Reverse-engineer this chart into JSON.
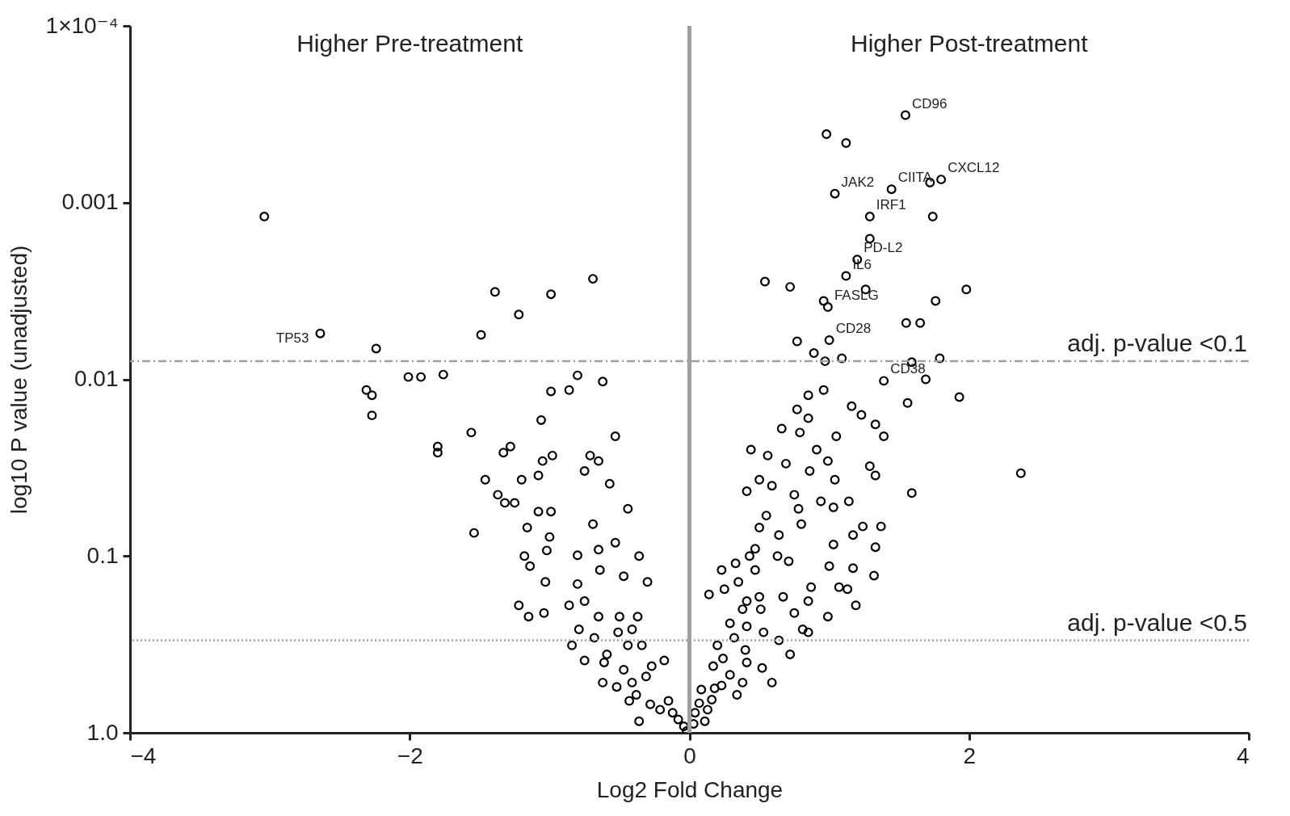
{
  "chart_data": {
    "type": "scatter",
    "xlabel": "Log2 Fold Change",
    "ylabel": "log10 P value (unadjusted)",
    "xlim": [
      -4,
      4
    ],
    "xticks": [
      -4,
      -2,
      0,
      2,
      4
    ],
    "ylim": [
      1,
      0.0001
    ],
    "yticks": [
      {
        "value": 1,
        "label": "1.0"
      },
      0.1,
      0.01,
      0.001,
      {
        "value": 0.0001,
        "label": "1×10⁻⁴"
      }
    ],
    "log": "y",
    "grid": false,
    "marker": "circle",
    "series": [
      {
        "color": "#000000",
        "x": [
          -3.04,
          -2.64,
          -2.24,
          -2.31,
          -2.27,
          -2.27,
          -2.01,
          -1.92,
          -1.76,
          -1.8,
          -1.8,
          -1.39,
          -1.49,
          -1.22,
          -0.99,
          -0.69,
          -0.8,
          -0.62,
          -0.86,
          -0.99,
          -1.06,
          -1.56,
          -1.28,
          -1.33,
          -0.53,
          -0.98,
          -0.71,
          -1.05,
          -0.65,
          -1.46,
          -1.2,
          -1.08,
          -0.75,
          -0.57,
          -1.37,
          -1.25,
          -1.32,
          -0.44,
          -1.54,
          -1.08,
          -0.99,
          -1.16,
          -1.0,
          -0.69,
          -1.18,
          -1.02,
          -0.8,
          -0.65,
          -0.53,
          -0.36,
          -1.14,
          -0.8,
          -1.03,
          -0.64,
          -0.47,
          -0.3,
          -1.22,
          -1.15,
          -1.04,
          -0.75,
          -0.86,
          -0.65,
          -0.5,
          -0.37,
          -0.79,
          -0.68,
          -0.51,
          -0.41,
          -0.84,
          -0.59,
          -0.44,
          -0.34,
          -0.75,
          -0.61,
          -0.47,
          -0.27,
          -0.18,
          -0.62,
          -0.41,
          -0.31,
          -0.52,
          -0.38,
          -0.43,
          -0.28,
          -0.21,
          -0.36,
          -0.15,
          -0.12,
          -0.08,
          -0.04,
          -0.02,
          1.545,
          0.98,
          1.12,
          1.04,
          1.445,
          1.72,
          1.8,
          1.29,
          1.74,
          1.29,
          1.2,
          1.12,
          1.26,
          0.54,
          0.72,
          0.96,
          0.99,
          1.76,
          1.98,
          1.55,
          1.65,
          0.77,
          1.0,
          0.89,
          1.09,
          0.97,
          1.59,
          1.79,
          1.39,
          1.69,
          1.56,
          1.93,
          0.96,
          0.85,
          0.77,
          0.85,
          1.16,
          1.23,
          1.33,
          1.05,
          1.39,
          0.66,
          0.79,
          0.44,
          0.56,
          0.91,
          0.99,
          1.29,
          0.69,
          0.86,
          0.5,
          0.59,
          1.04,
          0.41,
          0.75,
          0.94,
          1.59,
          1.14,
          1.33,
          1.37,
          1.24,
          1.03,
          0.78,
          0.55,
          0.5,
          0.64,
          0.8,
          1.03,
          1.17,
          1.33,
          0.47,
          0.43,
          0.63,
          0.71,
          1.0,
          1.17,
          1.13,
          1.07,
          1.32,
          1.19,
          0.23,
          0.33,
          0.47,
          0.35,
          0.25,
          0.14,
          0.41,
          0.5,
          0.67,
          0.87,
          0.85,
          0.38,
          0.51,
          0.75,
          0.29,
          0.41,
          0.81,
          0.99,
          0.85,
          0.53,
          0.64,
          0.32,
          0.2,
          0.4,
          0.72,
          0.24,
          0.41,
          0.52,
          0.29,
          0.17,
          0.59,
          0.38,
          0.23,
          0.34,
          0.18,
          0.16,
          0.085,
          0.13,
          0.07,
          0.11,
          0.04,
          0.03,
          2.37
        ],
        "values": [
          0.0012,
          0.0055,
          0.0067,
          0.0115,
          0.0123,
          0.016,
          0.0097,
          0.0097,
          0.0094,
          0.024,
          0.026,
          0.0032,
          0.0056,
          0.0043,
          0.0033,
          0.0027,
          0.0095,
          0.0103,
          0.0115,
          0.0117,
          0.017,
          0.02,
          0.024,
          0.026,
          0.021,
          0.027,
          0.027,
          0.029,
          0.029,
          0.037,
          0.037,
          0.035,
          0.033,
          0.039,
          0.045,
          0.05,
          0.05,
          0.054,
          0.074,
          0.056,
          0.056,
          0.069,
          0.078,
          0.066,
          0.1,
          0.093,
          0.099,
          0.092,
          0.084,
          0.1,
          0.114,
          0.144,
          0.14,
          0.12,
          0.13,
          0.14,
          0.19,
          0.22,
          0.21,
          0.18,
          0.19,
          0.22,
          0.22,
          0.22,
          0.26,
          0.29,
          0.27,
          0.26,
          0.32,
          0.36,
          0.32,
          0.32,
          0.39,
          0.4,
          0.44,
          0.42,
          0.39,
          0.52,
          0.52,
          0.48,
          0.55,
          0.61,
          0.66,
          0.69,
          0.74,
          0.86,
          0.66,
          0.77,
          0.84,
          0.92,
          0.98,
          0.00032,
          0.00041,
          0.00046,
          0.00089,
          0.00084,
          0.00077,
          0.00074,
          0.0012,
          0.0012,
          0.0016,
          0.0021,
          0.0026,
          0.0031,
          0.0028,
          0.003,
          0.0036,
          0.0039,
          0.0036,
          0.0031,
          0.0048,
          0.0048,
          0.0061,
          0.006,
          0.0071,
          0.0076,
          0.0079,
          0.008,
          0.0076,
          0.0102,
          0.01,
          0.0136,
          0.0126,
          0.0115,
          0.0123,
          0.0148,
          0.0166,
          0.0142,
          0.0159,
          0.018,
          0.021,
          0.021,
          0.019,
          0.02,
          0.025,
          0.027,
          0.025,
          0.029,
          0.031,
          0.03,
          0.033,
          0.037,
          0.04,
          0.037,
          0.043,
          0.045,
          0.049,
          0.044,
          0.049,
          0.035,
          0.068,
          0.068,
          0.053,
          0.054,
          0.059,
          0.069,
          0.076,
          0.066,
          0.086,
          0.076,
          0.089,
          0.091,
          0.1,
          0.1,
          0.107,
          0.114,
          0.117,
          0.154,
          0.15,
          0.129,
          0.19,
          0.12,
          0.11,
          0.12,
          0.14,
          0.154,
          0.165,
          0.18,
          0.17,
          0.17,
          0.15,
          0.18,
          0.2,
          0.2,
          0.21,
          0.24,
          0.25,
          0.26,
          0.22,
          0.27,
          0.27,
          0.3,
          0.29,
          0.32,
          0.34,
          0.36,
          0.38,
          0.4,
          0.43,
          0.47,
          0.42,
          0.52,
          0.52,
          0.54,
          0.61,
          0.56,
          0.65,
          0.57,
          0.74,
          0.68,
          0.86,
          0.77,
          0.89,
          0.034
        ]
      }
    ],
    "ref_lines": [
      {
        "axis": "x",
        "value": 0,
        "color": "#a0a0a0",
        "line_style": "solid"
      },
      {
        "axis": "y",
        "value": 0.0079,
        "label": "adj. p-value <0.1",
        "color": "#a0a0a0",
        "line_style": "dashed"
      },
      {
        "axis": "y",
        "value": 0.3,
        "label": "adj. p-value <0.5",
        "color": "#a0a0a0",
        "line_style": "dotted"
      }
    ],
    "annotations": [
      "Higher Pre-treatment",
      "Higher Post-treatment",
      {
        "text": "CD96",
        "x": 1.545,
        "y": 0.00032
      },
      {
        "text": "JAK2",
        "x": 1.04,
        "y": 0.00089
      },
      {
        "text": "CIITA",
        "x": 1.445,
        "y": 0.00084
      },
      {
        "text": "CXCL12",
        "x": 1.8,
        "y": 0.00074
      },
      {
        "text": "IRF1",
        "x": 1.29,
        "y": 0.0012
      },
      {
        "text": "PD-L2",
        "x": 1.2,
        "y": 0.0021
      },
      {
        "text": "IL6",
        "x": 1.12,
        "y": 0.0026
      },
      {
        "text": "FASLG",
        "x": 0.99,
        "y": 0.0039
      },
      {
        "text": "CD28",
        "x": 1.0,
        "y": 0.006
      },
      {
        "text": "CD38",
        "x": 1.39,
        "y": 0.0102
      },
      {
        "text": "TP53",
        "x": -2.64,
        "y": 0.0055
      }
    ]
  }
}
